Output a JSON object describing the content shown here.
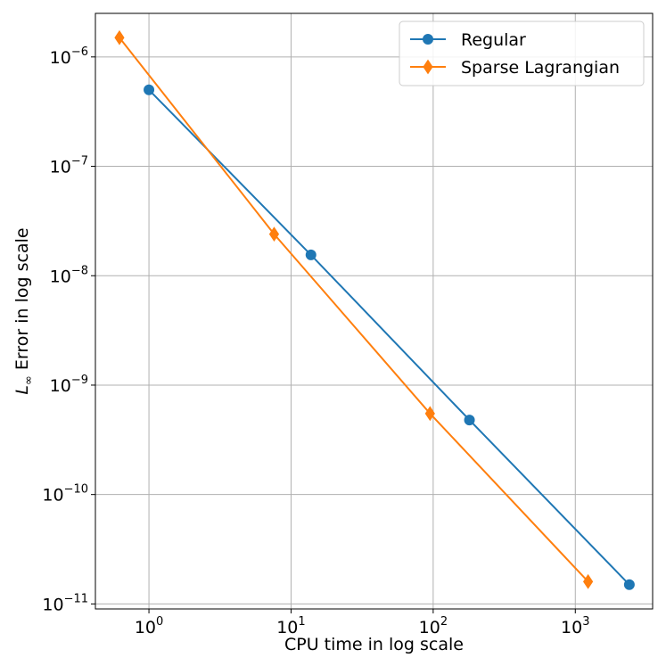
{
  "chart_data": {
    "type": "line",
    "xscale": "log",
    "yscale": "log",
    "xlabel": "CPU time in log scale",
    "ylabel_main": "L",
    "ylabel_sub": "∞",
    "ylabel_rest": " Error in log scale",
    "xlim": [
      0.42,
      3500
    ],
    "ylim": [
      9e-12,
      2.5e-06
    ],
    "grid": true,
    "legend_position": "top-right",
    "x_ticks": [
      {
        "base": "10",
        "exp": "0",
        "value": 1
      },
      {
        "base": "10",
        "exp": "1",
        "value": 10
      },
      {
        "base": "10",
        "exp": "2",
        "value": 100
      },
      {
        "base": "10",
        "exp": "3",
        "value": 1000
      }
    ],
    "y_ticks": [
      {
        "base": "10",
        "exp": "−6",
        "value": 1e-06
      },
      {
        "base": "10",
        "exp": "−7",
        "value": 1e-07
      },
      {
        "base": "10",
        "exp": "−8",
        "value": 1e-08
      },
      {
        "base": "10",
        "exp": "−9",
        "value": 1e-09
      },
      {
        "base": "10",
        "exp": "−10",
        "value": 1e-10
      },
      {
        "base": "10",
        "exp": "−11",
        "value": 1e-11
      }
    ],
    "series": [
      {
        "name": "Regular",
        "color": "#1f77b4",
        "marker": "circle",
        "x": [
          1.0,
          13.8,
          180,
          2400
        ],
        "y": [
          5e-07,
          1.55e-08,
          4.8e-10,
          1.5e-11
        ]
      },
      {
        "name": "Sparse Lagrangian",
        "color": "#ff7f0e",
        "marker": "diamond",
        "x": [
          0.62,
          7.6,
          95,
          1230
        ],
        "y": [
          1.5e-06,
          2.4e-08,
          5.5e-10,
          1.6e-11
        ]
      }
    ]
  }
}
